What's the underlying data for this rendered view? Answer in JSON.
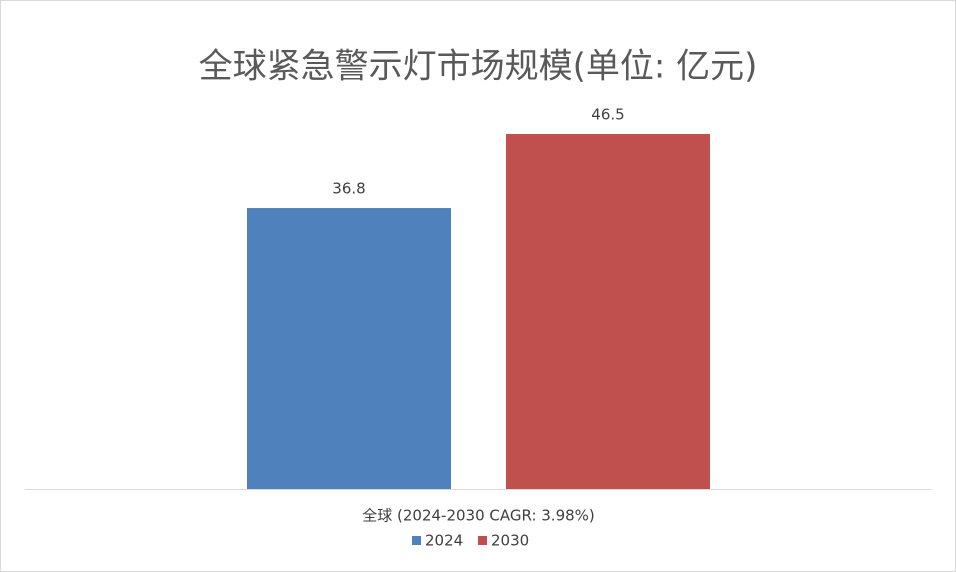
{
  "chart_data": {
    "type": "bar",
    "title": "全球紧急警示灯市场规模(单位: 亿元)",
    "categories": [
      "全球 (2024-2030 CAGR: 3.98%)"
    ],
    "series": [
      {
        "name": "2024",
        "color": "#4f81bd",
        "values": [
          36.8
        ]
      },
      {
        "name": "2030",
        "color": "#c0504d",
        "values": [
          46.5
        ]
      }
    ],
    "legend": "bottom"
  }
}
